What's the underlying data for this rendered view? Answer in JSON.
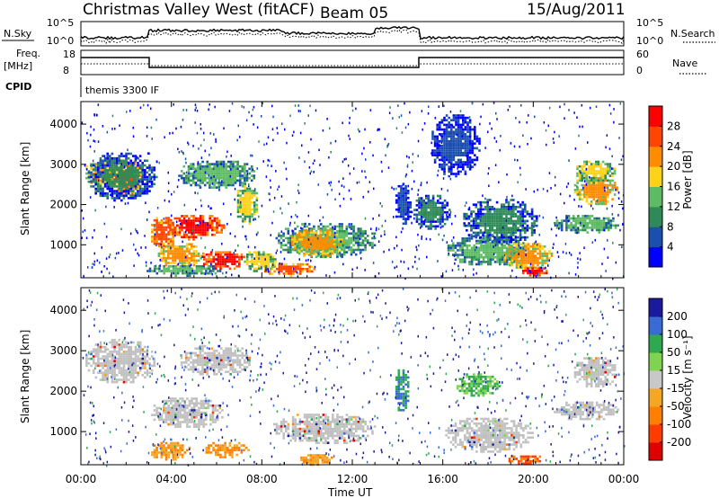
{
  "header": {
    "title": "Christmas Valley West (fitACF)",
    "beam": "Beam 05",
    "date": "15/Aug/2011"
  },
  "status_panel": {
    "nsky_label": "N.Sky",
    "nsky_ticks": [
      "10^5",
      "10^0"
    ],
    "nsearch_label": "N.Search",
    "freq_label_1": "Freq.",
    "freq_label_2": "[MHz]",
    "freq_ticks": [
      "18",
      "8"
    ],
    "nave_ticks": [
      "60",
      "0"
    ],
    "nave_label": "Nave",
    "cpid_label": "CPID",
    "cpid_value": "themis 3300 IF"
  },
  "axes": {
    "ylabel": "Slant Range [km]",
    "xlabel": "Time UT",
    "y_ticks": [
      "4000",
      "3000",
      "2000",
      "1000"
    ],
    "x_ticks": [
      "00:00",
      "04:00",
      "08:00",
      "12:00",
      "16:00",
      "20:00",
      "00:00"
    ]
  },
  "colorbars": {
    "power": {
      "label": "Power [dB]",
      "ticks": [
        "28",
        "24",
        "20",
        "16",
        "12",
        "8",
        "4"
      ],
      "colors": [
        "#0000ff",
        "#1a4fb0",
        "#2e8b57",
        "#5dbb63",
        "#ffd21a",
        "#ff8c00",
        "#ff4500",
        "#ff0000"
      ]
    },
    "velocity": {
      "label": "Velocity [m s⁻¹]",
      "ticks": [
        "200",
        "100",
        "50",
        "15",
        "-15",
        "-50",
        "-100",
        "-200"
      ],
      "colors": [
        "#1a1a9e",
        "#3a6ad4",
        "#2fa84f",
        "#7fd34f",
        "#c8c8c8",
        "#f5a623",
        "#ff8000",
        "#ff3b00",
        "#e00000"
      ]
    }
  },
  "colors": {
    "ground_scatter": "#c0c0c0"
  },
  "chart_data": {
    "type": "heatmap",
    "x_unit": "hours UT",
    "x_range": [
      0,
      24
    ],
    "y_range_km": [
      180,
      4560
    ],
    "power_patches": [
      {
        "x": [
          0.1,
          1.6
        ],
        "y": [
          2450,
          3150
        ],
        "level": 5
      },
      {
        "x": [
          1.3,
          2.7
        ],
        "y": [
          2250,
          3150
        ],
        "level": 6
      },
      {
        "x": [
          0.2,
          3.3
        ],
        "y": [
          2100,
          3350
        ],
        "level": 2
      },
      {
        "x": [
          3.0,
          4.2
        ],
        "y": [
          900,
          1750
        ],
        "level": 6
      },
      {
        "x": [
          3.8,
          6.3
        ],
        "y": [
          1150,
          1800
        ],
        "level": 7
      },
      {
        "x": [
          3.3,
          5.4
        ],
        "y": [
          450,
          1100
        ],
        "level": 5
      },
      {
        "x": [
          5.3,
          7.3
        ],
        "y": [
          400,
          900
        ],
        "level": 7
      },
      {
        "x": [
          4.2,
          7.8
        ],
        "y": [
          2400,
          3150
        ],
        "level": 3
      },
      {
        "x": [
          6.8,
          7.8
        ],
        "y": [
          1500,
          2600
        ],
        "level": 4
      },
      {
        "x": [
          8.5,
          13.1
        ],
        "y": [
          700,
          1600
        ],
        "level": 3
      },
      {
        "x": [
          9.2,
          11.6
        ],
        "y": [
          700,
          1450
        ],
        "level": 5
      },
      {
        "x": [
          8.0,
          10.3
        ],
        "y": [
          250,
          600
        ],
        "level": 6
      },
      {
        "x": [
          7.1,
          8.6
        ],
        "y": [
          350,
          900
        ],
        "level": 4
      },
      {
        "x": [
          2.8,
          6.2
        ],
        "y": [
          250,
          550
        ],
        "level": 3
      },
      {
        "x": [
          14.6,
          16.3
        ],
        "y": [
          1400,
          2300
        ],
        "level": 2
      },
      {
        "x": [
          16.1,
          19.8
        ],
        "y": [
          500,
          1300
        ],
        "level": 3
      },
      {
        "x": [
          16.8,
          20.2
        ],
        "y": [
          1000,
          2200
        ],
        "level": 2
      },
      {
        "x": [
          18.6,
          20.8
        ],
        "y": [
          400,
          1100
        ],
        "level": 5
      },
      {
        "x": [
          19.3,
          20.6
        ],
        "y": [
          250,
          500
        ],
        "level": 7
      },
      {
        "x": [
          21.7,
          23.7
        ],
        "y": [
          2000,
          2800
        ],
        "level": 5
      },
      {
        "x": [
          20.8,
          23.8
        ],
        "y": [
          1300,
          1800
        ],
        "level": 3
      },
      {
        "x": [
          21.8,
          23.6
        ],
        "y": [
          2550,
          3150
        ],
        "level": 4
      },
      {
        "x": [
          13.8,
          14.6
        ],
        "y": [
          1500,
          2600
        ],
        "level": 1
      },
      {
        "x": [
          15.4,
          17.6
        ],
        "y": [
          2700,
          4300
        ],
        "level": 1
      }
    ],
    "velocity_patches": [
      {
        "x": [
          0.1,
          3.3
        ],
        "y": [
          2200,
          3350
        ],
        "level": 4
      },
      {
        "x": [
          3.0,
          6.3
        ],
        "y": [
          1100,
          1900
        ],
        "level": 4
      },
      {
        "x": [
          4.3,
          7.6
        ],
        "y": [
          2400,
          3200
        ],
        "level": 4
      },
      {
        "x": [
          8.4,
          13.0
        ],
        "y": [
          700,
          1500
        ],
        "level": 4
      },
      {
        "x": [
          16.0,
          20.0
        ],
        "y": [
          500,
          1400
        ],
        "level": 4
      },
      {
        "x": [
          20.8,
          23.8
        ],
        "y": [
          1300,
          1800
        ],
        "level": 4
      },
      {
        "x": [
          21.7,
          23.7
        ],
        "y": [
          2100,
          2900
        ],
        "level": 4
      },
      {
        "x": [
          3.0,
          4.8
        ],
        "y": [
          300,
          800
        ],
        "level": 6
      },
      {
        "x": [
          5.4,
          7.4
        ],
        "y": [
          380,
          800
        ],
        "level": 6
      },
      {
        "x": [
          9.6,
          11.2
        ],
        "y": [
          200,
          500
        ],
        "level": 6
      },
      {
        "x": [
          18.8,
          20.4
        ],
        "y": [
          230,
          470
        ],
        "level": 7
      },
      {
        "x": [
          13.8,
          14.5
        ],
        "y": [
          1500,
          2600
        ],
        "level": 2
      },
      {
        "x": [
          16.5,
          18.5
        ],
        "y": [
          1900,
          2500
        ],
        "level": 3
      }
    ]
  }
}
